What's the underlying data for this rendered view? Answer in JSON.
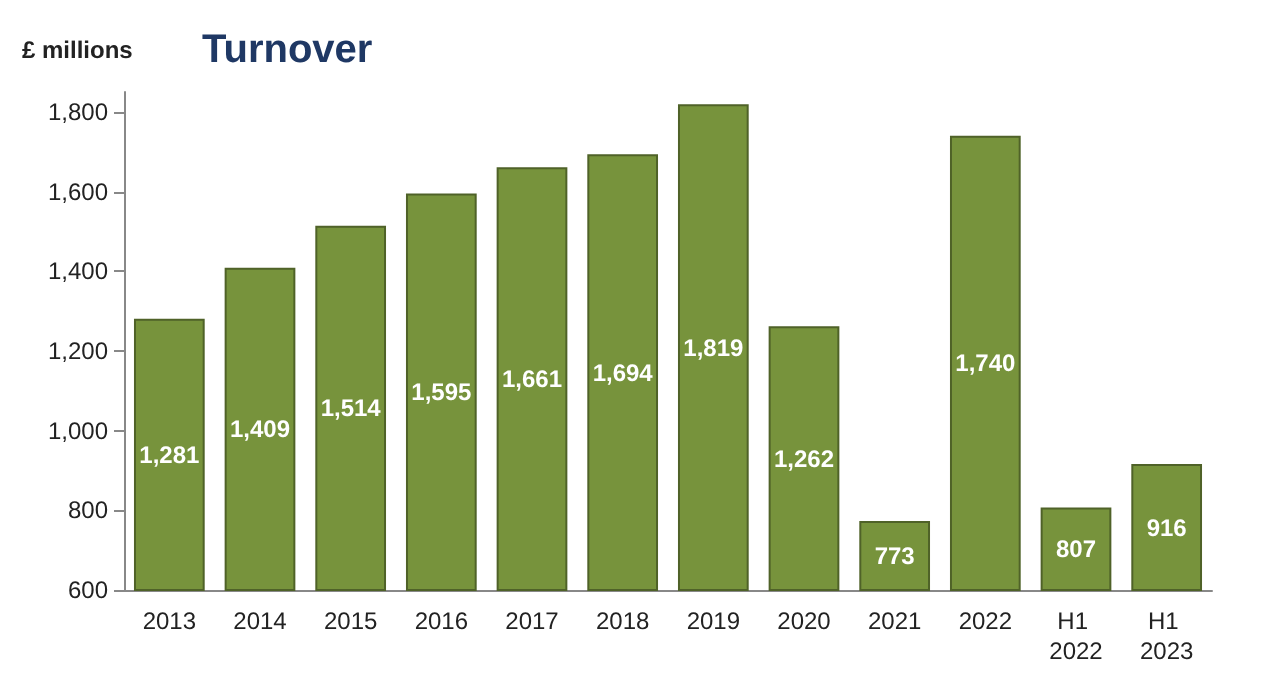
{
  "chart_data": {
    "type": "bar",
    "title": "Turnover",
    "ylabel": "£ millions",
    "categories": [
      "2013",
      "2014",
      "2015",
      "2016",
      "2017",
      "2018",
      "2019",
      "2020",
      "2021",
      "2022",
      "H1 2022",
      "H1 2023"
    ],
    "values": [
      1281,
      1409,
      1514,
      1595,
      1661,
      1694,
      1819,
      1262,
      773,
      1740,
      807,
      916
    ],
    "value_labels": [
      "1,281",
      "1,409",
      "1,514",
      "1,595",
      "1,661",
      "1,694",
      "1,819",
      "1,262",
      "773",
      "1,740",
      "807",
      "916"
    ],
    "color": "#77933c",
    "ylim": [
      600,
      1850
    ],
    "yticks": [
      600,
      800,
      {
        "value": 1000,
        "label": "1,000"
      },
      {
        "value": 1200,
        "label": "1,200"
      },
      {
        "value": 1400,
        "label": "1,400"
      },
      {
        "value": 1600,
        "label": "1,600"
      },
      {
        "value": 1800,
        "label": "1,800"
      }
    ]
  }
}
